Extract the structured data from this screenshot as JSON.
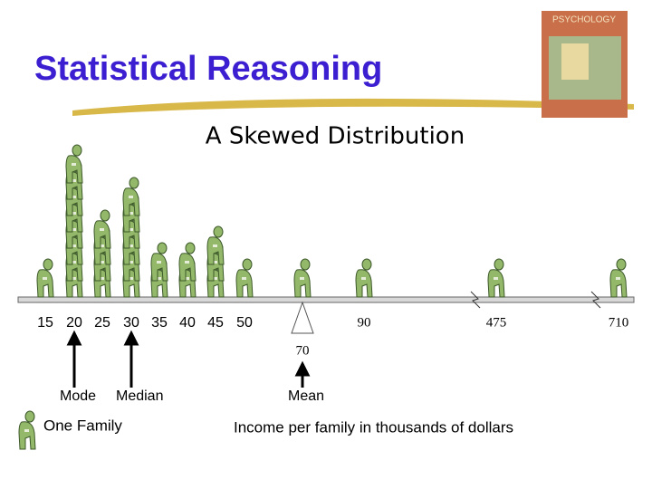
{
  "chart_data": {
    "type": "pictograph",
    "title": "Statistical Reasoning",
    "subtitle": "A Skewed Distribution",
    "categories": [
      "15",
      "20",
      "25",
      "30",
      "35",
      "40",
      "45",
      "50",
      "70",
      "90",
      "475",
      "710"
    ],
    "values": [
      1,
      8,
      4,
      6,
      2,
      2,
      3,
      1,
      1,
      1,
      1,
      1
    ],
    "color": "#93b86a",
    "annotations": {
      "mode": "Mode",
      "median": "Median",
      "mean": "Mean"
    },
    "legend": "One Family",
    "x_label": "Income per family in thousands of dollars",
    "book_title": "PSYCHOLOGY"
  }
}
